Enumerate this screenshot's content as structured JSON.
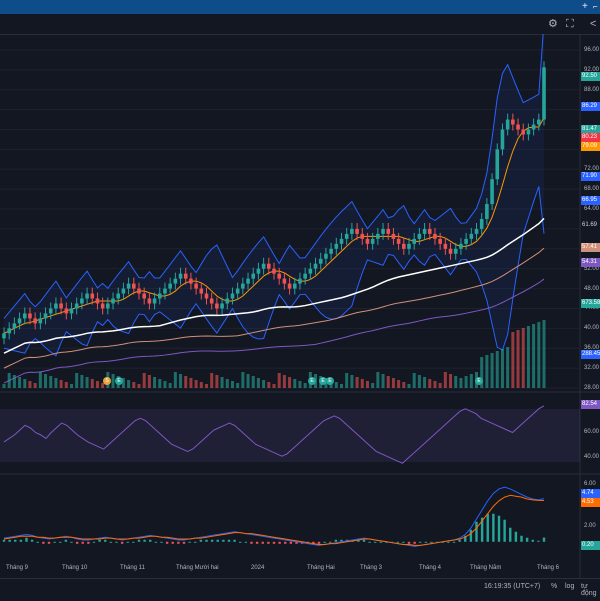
{
  "toolbar": {
    "icons": [
      "plus-icon",
      "settings-icon",
      "fullscreen-icon",
      "share-icon"
    ]
  },
  "price_axis": {
    "ticks": [
      "96.00",
      "92.00",
      "88.00",
      "84.00",
      "80.00",
      "76.00",
      "72.00",
      "68.00",
      "64.00",
      "60.00",
      "56.00",
      "52.00",
      "48.00",
      "44.00",
      "40.00",
      "36.00",
      "32.00",
      "28.00"
    ],
    "tags": [
      {
        "label": "92.50",
        "color": "#26a69a"
      },
      {
        "label": "86.29",
        "color": "#2962ff"
      },
      {
        "label": "81.47",
        "color": "#26a69a"
      },
      {
        "label": "80.23",
        "color": "#f23645"
      },
      {
        "label": "79.09",
        "color": "#ff9800"
      },
      {
        "label": "71.90",
        "color": "#2962ff"
      },
      {
        "label": "66.95",
        "color": "#2962ff"
      },
      {
        "label": "61.69",
        "color": "#131722"
      },
      {
        "label": "57.41",
        "color": "#d1907a"
      },
      {
        "label": "54.31",
        "color": "#7e57c2"
      },
      {
        "label": "673.58",
        "color": "#26a69a"
      },
      {
        "label": "288.45",
        "color": "#2962ff"
      }
    ]
  },
  "rsi_axis": {
    "ticks": [
      "60.00",
      "40.00"
    ],
    "tag": {
      "label": "82.54",
      "color": "#7e57c2"
    }
  },
  "macd_axis": {
    "ticks": [
      "6.00",
      "4.00",
      "2.00",
      "0.00"
    ],
    "tags": [
      {
        "label": "4.74",
        "color": "#2962ff"
      },
      {
        "label": "4.53",
        "color": "#ff6d00"
      },
      {
        "label": "0.20",
        "color": "#26a69a"
      }
    ]
  },
  "time_axis": {
    "months": [
      "Tháng 9",
      "Tháng 10",
      "Tháng 11",
      "Tháng Mười hai",
      "2024",
      "Tháng Hai",
      "Tháng 3",
      "Tháng 4",
      "Tháng Năm",
      "Tháng 6"
    ]
  },
  "markers": [
    "S",
    "E",
    "E",
    "E",
    "E",
    "E"
  ],
  "bottom": {
    "time": "16:19:35 (UTC+7)",
    "percent": "%",
    "log": "log",
    "auto": "tự động"
  },
  "colors": {
    "background": "#131722",
    "up": "#26a69a",
    "down": "#ef5350",
    "grid": "#1e222d",
    "rsi": "#7e57c2",
    "bb": "#2962ff",
    "ma_white": "#ffffff",
    "ma_salmon": "#d1907a",
    "ma_purple": "#7e57c2",
    "ma_orange": "#ff9800",
    "macd_blue": "#2962ff",
    "macd_orange": "#ff6d00"
  },
  "chart_data": {
    "type": "candlestick",
    "price_range": [
      28,
      98
    ],
    "closes": [
      39,
      40,
      41,
      42,
      43,
      42,
      41,
      42,
      43,
      44,
      45,
      44,
      43,
      44,
      45,
      46,
      47,
      46,
      45,
      44,
      45,
      46,
      47,
      48,
      49,
      48,
      47,
      46,
      45,
      46,
      47,
      48,
      49,
      50,
      51,
      50,
      49,
      48,
      47,
      46,
      45,
      44,
      45,
      46,
      47,
      48,
      49,
      50,
      51,
      52,
      53,
      52,
      51,
      50,
      49,
      48,
      49,
      50,
      51,
      52,
      53,
      54,
      55,
      56,
      57,
      58,
      59,
      60,
      59,
      58,
      57,
      58,
      59,
      60,
      59,
      58,
      57,
      56,
      57,
      58,
      59,
      60,
      59,
      58,
      57,
      56,
      55,
      56,
      57,
      58,
      59,
      60,
      62,
      65,
      70,
      76,
      80,
      82,
      81,
      80,
      79,
      80,
      81,
      82,
      92.5
    ],
    "rsi_range": [
      30,
      90
    ],
    "rsi": [
      52,
      55,
      58,
      62,
      66,
      64,
      60,
      58,
      55,
      60,
      64,
      68,
      66,
      62,
      58,
      55,
      52,
      50,
      48,
      46,
      50,
      54,
      58,
      62,
      66,
      70,
      72,
      70,
      66,
      62,
      58,
      54,
      50,
      48,
      46,
      44,
      46,
      50,
      54,
      58,
      62,
      64,
      66,
      68,
      66,
      62,
      58,
      54,
      50,
      48,
      46,
      44,
      42,
      40,
      42,
      46,
      50,
      54,
      58,
      62,
      66,
      70,
      72,
      74,
      72,
      68,
      64,
      60,
      56,
      52,
      48,
      44,
      42,
      40,
      38,
      36,
      34,
      38,
      42,
      46,
      50,
      54,
      58,
      62,
      66,
      70,
      74,
      78,
      80,
      78,
      76,
      72,
      70,
      68,
      66,
      64,
      62,
      60,
      64,
      68,
      72,
      76,
      80,
      82.54
    ],
    "macd_range": [
      -2,
      7
    ],
    "macd": [
      0.4,
      0.5,
      0.6,
      0.7,
      0.8,
      0.7,
      0.5,
      0.4,
      0.3,
      0.4,
      0.5,
      0.6,
      0.5,
      0.3,
      0.2,
      0.2,
      0.3,
      0.4,
      0.5,
      0.4,
      0.3,
      0.2,
      0.3,
      0.4,
      0.5,
      0.6,
      0.7,
      0.6,
      0.5,
      0.4,
      0.3,
      0.2,
      0.2,
      0.3,
      0.4,
      0.5,
      0.6,
      0.7,
      0.8,
      0.9,
      1.0,
      1.1,
      1.0,
      0.9,
      0.8,
      0.7,
      0.6,
      0.5,
      0.4,
      0.3,
      0.2,
      0.1,
      0.0,
      -0.1,
      -0.2,
      -0.3,
      -0.4,
      -0.3,
      -0.2,
      -0.1,
      0.0,
      0.1,
      0.2,
      0.3,
      0.4,
      0.3,
      0.2,
      0.1,
      0.0,
      -0.1,
      -0.2,
      -0.3,
      -0.4,
      -0.5,
      -0.4,
      -0.3,
      -0.2,
      -0.1,
      0.0,
      0.1,
      0.2,
      0.4,
      0.8,
      1.5,
      2.5,
      3.5,
      4.5,
      5.3,
      5.8,
      6.0,
      5.8,
      5.5,
      5.2,
      4.9,
      4.7,
      4.6,
      4.74
    ],
    "signal": [
      0.3,
      0.4,
      0.5,
      0.6,
      0.6,
      0.6,
      0.5,
      0.5,
      0.4,
      0.4,
      0.5,
      0.5,
      0.5,
      0.4,
      0.3,
      0.3,
      0.3,
      0.3,
      0.4,
      0.4,
      0.3,
      0.3,
      0.3,
      0.4,
      0.4,
      0.5,
      0.6,
      0.6,
      0.5,
      0.5,
      0.4,
      0.3,
      0.3,
      0.3,
      0.4,
      0.4,
      0.5,
      0.6,
      0.7,
      0.8,
      0.9,
      1.0,
      1.0,
      0.9,
      0.9,
      0.8,
      0.7,
      0.6,
      0.5,
      0.4,
      0.3,
      0.2,
      0.1,
      0.0,
      -0.1,
      -0.2,
      -0.3,
      -0.3,
      -0.2,
      -0.2,
      -0.1,
      0.0,
      0.1,
      0.2,
      0.3,
      0.3,
      0.2,
      0.1,
      0.0,
      -0.1,
      -0.2,
      -0.3,
      -0.3,
      -0.4,
      -0.4,
      -0.3,
      -0.2,
      -0.1,
      0.0,
      0.1,
      0.2,
      0.3,
      0.5,
      0.9,
      1.5,
      2.3,
      3.1,
      3.9,
      4.5,
      4.9,
      5.1,
      5.0,
      4.9,
      4.7,
      4.6,
      4.55,
      4.53
    ]
  }
}
